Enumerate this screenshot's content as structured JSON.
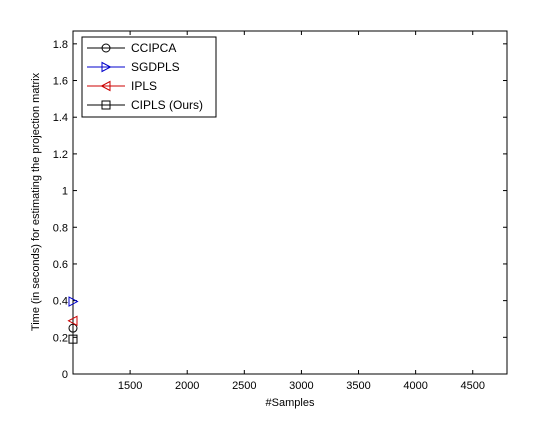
{
  "chart_data": {
    "type": "scatter",
    "xlabel": "#Samples",
    "ylabel": "Time (in seconds) for estimating the projection matrix",
    "xlim": [
      1000,
      4800
    ],
    "ylim": [
      0,
      1.87
    ],
    "xticks": [
      1500,
      2000,
      2500,
      3000,
      3500,
      4000,
      4500
    ],
    "yticks": [
      0,
      0.2,
      0.4,
      0.6,
      0.8,
      1,
      1.2,
      1.4,
      1.6,
      1.8
    ],
    "xtick_labels": [
      "1500",
      "2000",
      "2500",
      "3000",
      "3500",
      "4000",
      "4500"
    ],
    "ytick_labels": [
      "0",
      "0.2",
      "0.4",
      "0.6",
      "0.8",
      "1",
      "1.2",
      "1.4",
      "1.6",
      "1.8"
    ],
    "grid": false,
    "legend_position": "top-left",
    "series": [
      {
        "name": "CCIPCA",
        "marker": "circle",
        "color": "#000000",
        "points": [
          [
            1000,
            0.25
          ]
        ]
      },
      {
        "name": "SGDPLS",
        "marker": "triangle-right",
        "color": "#0000cc",
        "points": [
          [
            1000,
            0.395
          ]
        ]
      },
      {
        "name": "IPLS",
        "marker": "triangle-left",
        "color": "#cc0000",
        "points": [
          [
            1000,
            0.29
          ]
        ]
      },
      {
        "name": "CIPLS (Ours)",
        "marker": "square",
        "color": "#000000",
        "points": [
          [
            1000,
            0.19
          ]
        ]
      }
    ]
  }
}
